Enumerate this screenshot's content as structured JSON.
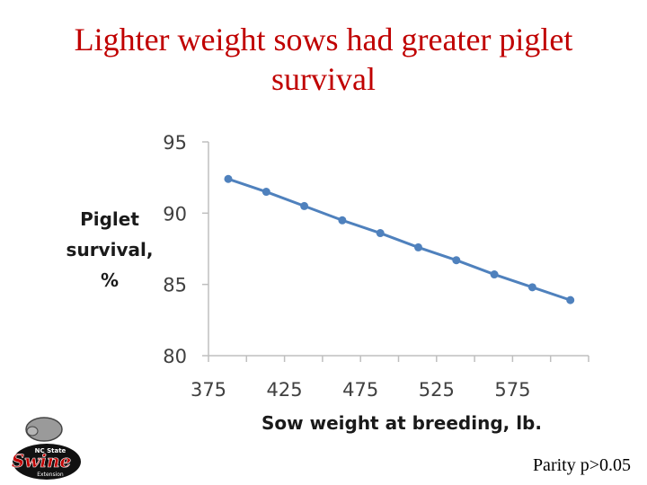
{
  "slide": {
    "title_line1": "Lighter weight sows had greater piglet",
    "title_line2": "survival",
    "note": "Parity p>0.05",
    "logo": {
      "icon": "nc-state-swine-extension-logo",
      "text": [
        "NC State",
        "Swine",
        "Extension"
      ]
    }
  },
  "colors": {
    "title": "#c00000",
    "series": "#4f81bd",
    "axis": "#bfbfbf"
  },
  "chart_data": {
    "type": "line",
    "title": "",
    "xlabel": "Sow weight at breeding, lb.",
    "ylabel_lines": [
      "Piglet",
      "survival,",
      "%"
    ],
    "xlim": [
      375,
      625
    ],
    "ylim": [
      80,
      95
    ],
    "xticks": [
      375,
      425,
      475,
      525,
      575
    ],
    "yticks": [
      95,
      90,
      85,
      80
    ],
    "grid": false,
    "legend": "none",
    "series": [
      {
        "x": [
          388,
          413,
          438,
          463,
          488,
          513,
          538,
          563,
          588,
          613
        ],
        "y": [
          92.4,
          91.5,
          90.5,
          89.5,
          88.6,
          87.6,
          86.7,
          85.7,
          84.8,
          83.9
        ]
      }
    ]
  }
}
